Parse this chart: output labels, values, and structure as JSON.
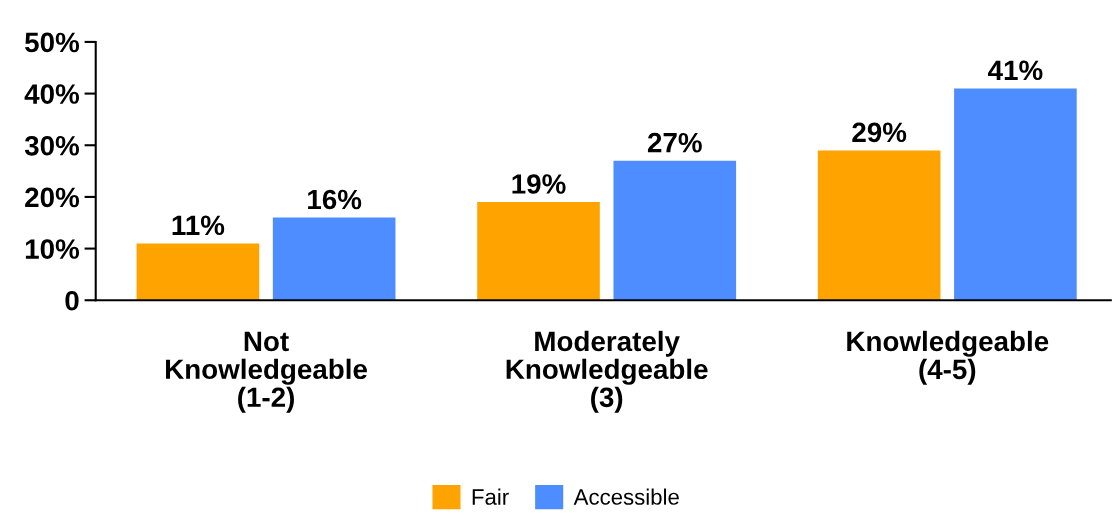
{
  "chart_data": {
    "type": "bar",
    "categories": [
      "Not\nKnowledgeable\n(1-2)",
      "Moderately\nKnowledgeable\n(3)",
      "Knowledgeable\n(4-5)"
    ],
    "series": [
      {
        "name": "Fair",
        "color": "#ffa300",
        "values": [
          11,
          19,
          29
        ],
        "value_labels": [
          "11%",
          "19%",
          "29%"
        ]
      },
      {
        "name": "Accessible",
        "color": "#4d8dff",
        "values": [
          16,
          27,
          41
        ],
        "value_labels": [
          "16%",
          "27%",
          "41%"
        ]
      }
    ],
    "ylim": [
      0,
      50
    ],
    "yticks": [
      {
        "value": 0,
        "label": "0"
      },
      {
        "value": 10,
        "label": "10%"
      },
      {
        "value": 20,
        "label": "20%"
      },
      {
        "value": 30,
        "label": "30%"
      },
      {
        "value": 40,
        "label": "40%"
      },
      {
        "value": 50,
        "label": "50%"
      }
    ],
    "grid": false,
    "legend": "bottom"
  }
}
